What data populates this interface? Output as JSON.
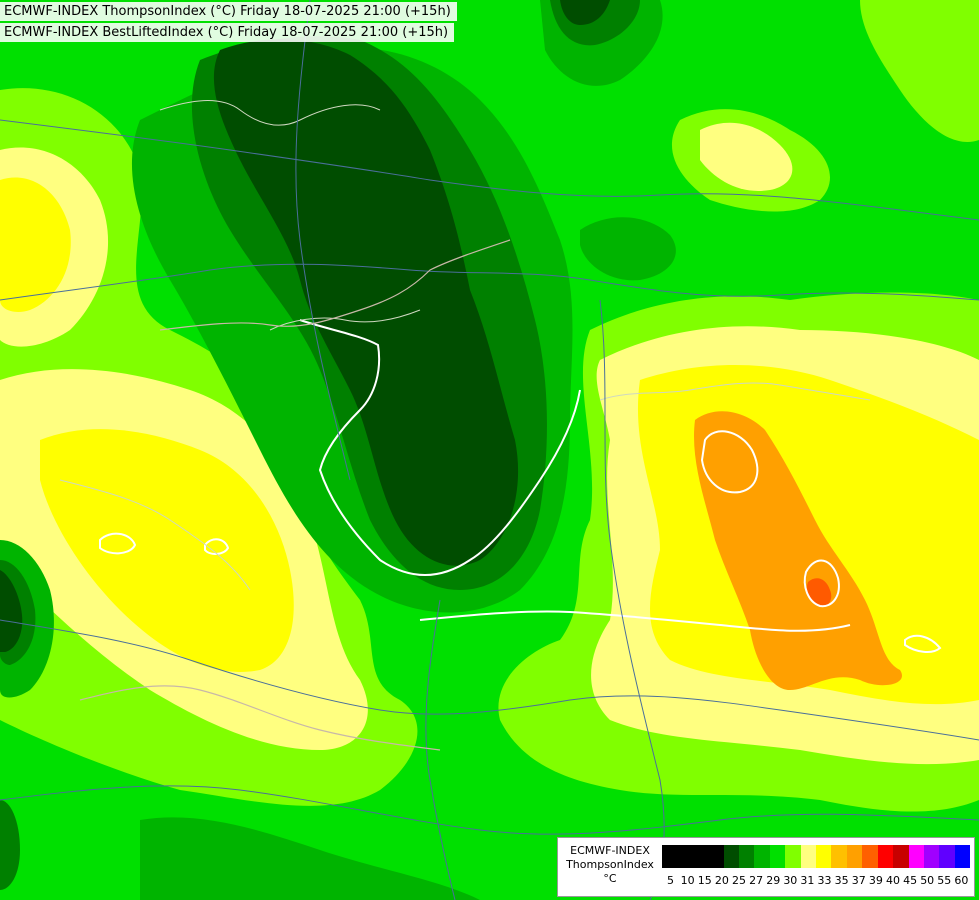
{
  "header": {
    "title_line1": "ECMWF-INDEX ThompsonIndex (°C) Friday 18-07-2025 21:00 (+15h)",
    "title_line2": "ECMWF-INDEX BestLiftedIndex (°C) Friday 18-07-2025 21:00 (+15h)"
  },
  "legend": {
    "model": "ECMWF-INDEX",
    "parameter": "ThompsonIndex",
    "unit": "°C",
    "ticks": [
      "5",
      "10",
      "15",
      "20",
      "25",
      "27",
      "29",
      "30",
      "31",
      "33",
      "35",
      "37",
      "39",
      "40",
      "45",
      "50",
      "55",
      "60"
    ],
    "colors": [
      "#000000",
      "#000000",
      "#000000",
      "#000000",
      "#004d00",
      "#008000",
      "#00b400",
      "#00e000",
      "#80ff00",
      "#ffff80",
      "#ffff00",
      "#ffc000",
      "#ffa000",
      "#ff6000",
      "#ff0000",
      "#c80000",
      "#ff00ff",
      "#a000ff",
      "#6000ff",
      "#0000ff"
    ]
  },
  "map_colors": {
    "dark_green": "#004d00",
    "green": "#008000",
    "mid_green": "#00b400",
    "bright_green": "#00e000",
    "light_green": "#80ff00",
    "pale_yellow": "#ffff80",
    "yellow": "#ffff00",
    "orange": "#ffa000",
    "red_orange": "#ff5a00"
  }
}
